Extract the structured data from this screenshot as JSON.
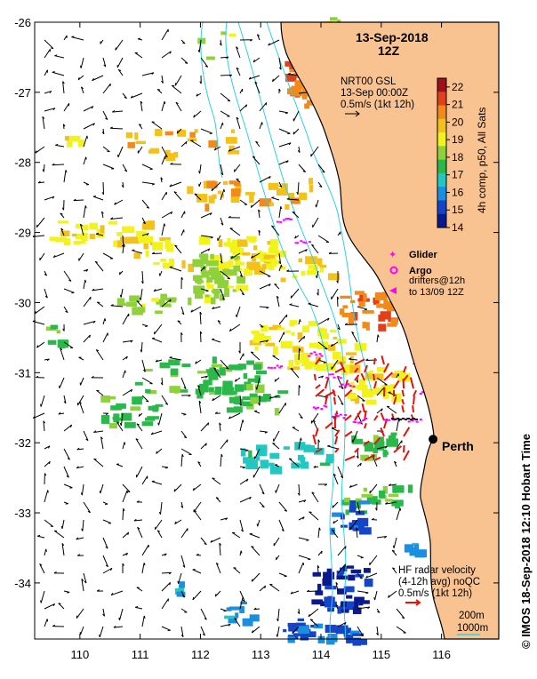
{
  "map": {
    "title_date": "13-Sep-2018",
    "title_time": "12Z",
    "lon_labels": [
      "110",
      "111",
      "112",
      "113",
      "114",
      "115",
      "116"
    ],
    "lat_labels": [
      "-26",
      "-27",
      "-28",
      "-29",
      "-30",
      "-31",
      "-32",
      "-33",
      "-34"
    ],
    "lon_range": [
      109.25,
      116.95
    ],
    "lat_range": [
      -34.8,
      -26.0
    ],
    "land_color": "#f9c391",
    "coast_color": "#000000",
    "contour_color": "#2ed1e0",
    "arrow_color": "#000000",
    "radar_arrow_color": "#e3120b",
    "glider_color": "#ff00ff",
    "city": {
      "name": "Perth",
      "lon": 115.86,
      "lat": -31.95
    }
  },
  "nrt_box": {
    "line1": "NRT00 GSL",
    "line2": "13-Sep 00:00Z",
    "line3": "0.5m/s (1kt 12h)"
  },
  "colorbar": {
    "title": "4h comp, p50, All Sats",
    "ticks": [
      "22",
      "21",
      "20",
      "19",
      "18",
      "17",
      "16",
      "15",
      "14"
    ],
    "min": 14,
    "max": 22.5,
    "colors": [
      "#0a1a8c",
      "#1444c8",
      "#1b8ee0",
      "#22c7c1",
      "#2ab84a",
      "#8fd13a",
      "#f2f21c",
      "#f2c21a",
      "#f28a1a",
      "#e0401a",
      "#a0101a"
    ]
  },
  "legend": {
    "glider_label": "Glider",
    "argo_label": "Argo",
    "drifters_label": "drifters@12h",
    "drifters_range": "to 13/09 12Z"
  },
  "radar": {
    "line1": "HF radar velocity",
    "line2": "(4-12h avg) noQC",
    "line3": "0.5m/s (1kt 12h)"
  },
  "depth_legend": {
    "d200": "200m",
    "d1000": "1000m"
  },
  "footer": {
    "credit": "©  IMOS 18-Sep-2018 12:10 Hobart Time"
  }
}
